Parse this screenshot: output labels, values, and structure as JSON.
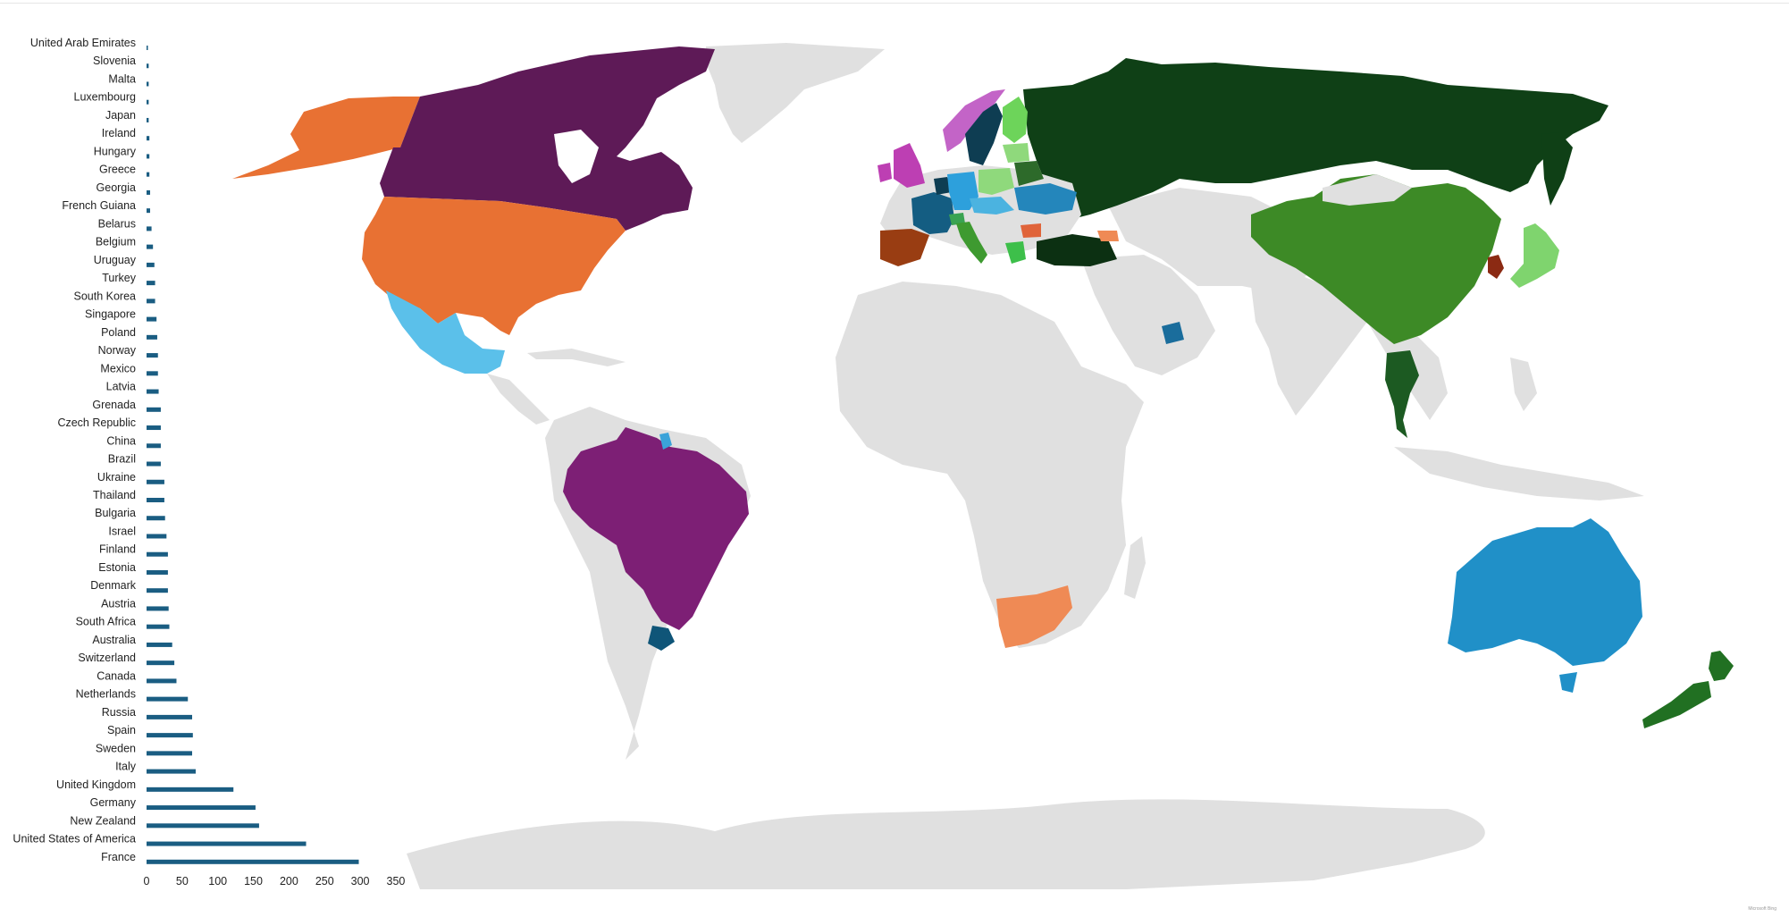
{
  "chart_data": {
    "type": "bar",
    "orientation": "horizontal",
    "categories": [
      "United Arab Emirates",
      "Slovenia",
      "Malta",
      "Luxembourg",
      "Japan",
      "Ireland",
      "Hungary",
      "Greece",
      "Georgia",
      "French Guiana",
      "Belarus",
      "Belgium",
      "Uruguay",
      "Turkey",
      "South Korea",
      "Singapore",
      "Poland",
      "Norway",
      "Mexico",
      "Latvia",
      "Grenada",
      "Czech Republic",
      "China",
      "Brazil",
      "Ukraine",
      "Thailand",
      "Bulgaria",
      "Israel",
      "Finland",
      "Estonia",
      "Denmark",
      "Austria",
      "South Africa",
      "Australia",
      "Switzerland",
      "Canada",
      "Netherlands",
      "Russia",
      "Spain",
      "Sweden",
      "Italy",
      "United Kingdom",
      "Germany",
      "New Zealand",
      "United States of America",
      "France"
    ],
    "values": [
      1,
      3,
      3,
      3,
      3,
      4,
      4,
      4,
      5,
      5,
      7,
      9,
      11,
      12,
      12,
      14,
      15,
      16,
      16,
      17,
      20,
      20,
      20,
      20,
      25,
      25,
      26,
      28,
      30,
      30,
      30,
      31,
      32,
      36,
      39,
      42,
      58,
      64,
      65,
      64,
      69,
      122,
      153,
      158,
      224,
      298
    ],
    "xlim": [
      0,
      350
    ],
    "xticks": [
      0,
      50,
      100,
      150,
      200,
      250,
      300,
      350
    ],
    "bar_color": "#1a5d82",
    "grid": false,
    "map_colors": {
      "ocean": "#ffffff",
      "land_default": "#e0e0e0",
      "canada": "#5e1a57",
      "usa": "#e87133",
      "mexico": "#5bc0ea",
      "brazil": "#7d1f75",
      "uruguay": "#0f5578",
      "french_guiana": "#3ba3d9",
      "russia": "#0f4016",
      "china": "#3d8a26",
      "thailand": "#1c5a22",
      "japan": "#7fd46e",
      "south_korea": "#8b2a13",
      "australia": "#2090c8",
      "new_zealand": "#217022",
      "south_africa": "#ef8a55",
      "spain": "#993d12",
      "france": "#145d82",
      "uk": "#bd3fb3",
      "sweden": "#0e3d52",
      "norway": "#c364c7",
      "finland": "#6dd45a",
      "germany": "#2da0dc",
      "poland": "#8fd97c",
      "ukraine": "#2486bb",
      "italy": "#3e9a30",
      "turkey": "#0c3012",
      "uae": "#1a6d9c"
    }
  },
  "attribution": "Microsoft Bing"
}
